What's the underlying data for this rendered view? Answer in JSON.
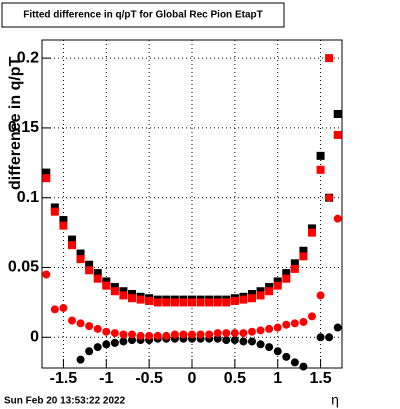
{
  "chart_data": {
    "type": "scatter",
    "title": "Fitted difference in q/pT for Global Rec Pion EtapT",
    "y_label": "difference in q/pT",
    "x_label": "η",
    "timestamp": "Sun Feb 20 13:53:22 2022",
    "x": [
      -1.7,
      -1.6,
      -1.5,
      -1.4,
      -1.3,
      -1.2,
      -1.1,
      -1.0,
      -0.9,
      -0.8,
      -0.7,
      -0.6,
      -0.5,
      -0.4,
      -0.3,
      -0.2,
      -0.1,
      0.0,
      0.1,
      0.2,
      0.3,
      0.4,
      0.5,
      0.6,
      0.7,
      0.8,
      0.9,
      1.0,
      1.1,
      1.2,
      1.3,
      1.4,
      1.5,
      1.6,
      1.7
    ],
    "series": [
      {
        "color": "#000000",
        "marker": "square",
        "values": [
          0.118,
          0.093,
          0.084,
          0.07,
          0.06,
          0.052,
          0.046,
          0.04,
          0.036,
          0.033,
          0.031,
          0.029,
          0.028,
          0.027,
          0.027,
          0.027,
          0.027,
          0.027,
          0.027,
          0.027,
          0.027,
          0.027,
          0.028,
          0.029,
          0.031,
          0.033,
          0.036,
          0.04,
          0.046,
          0.053,
          0.062,
          0.078,
          0.13,
          0.1,
          0.16
        ]
      },
      {
        "color": "#ff0000",
        "marker": "square",
        "values": [
          0.114,
          0.09,
          0.08,
          0.066,
          0.056,
          0.048,
          0.042,
          0.037,
          0.033,
          0.03,
          0.028,
          0.027,
          0.026,
          0.025,
          0.025,
          0.025,
          0.025,
          0.025,
          0.025,
          0.025,
          0.025,
          0.025,
          0.026,
          0.027,
          0.028,
          0.03,
          0.033,
          0.037,
          0.042,
          0.049,
          0.058,
          0.075,
          0.12,
          0.2,
          0.145
        ]
      },
      {
        "color": "#000000",
        "marker": "circle",
        "values": [
          null,
          null,
          null,
          null,
          -0.016,
          -0.01,
          -0.007,
          -0.005,
          -0.004,
          -0.003,
          -0.002,
          -0.002,
          -0.002,
          -0.001,
          -0.001,
          -0.001,
          -0.001,
          -0.001,
          -0.001,
          -0.001,
          -0.001,
          -0.002,
          -0.002,
          -0.003,
          -0.003,
          -0.005,
          -0.007,
          -0.01,
          -0.014,
          -0.018,
          -0.021,
          null,
          0.0,
          0.0,
          0.007
        ]
      },
      {
        "color": "#ff0000",
        "marker": "circle",
        "values": [
          0.045,
          0.02,
          0.021,
          0.012,
          0.01,
          0.008,
          0.006,
          0.004,
          0.003,
          0.002,
          0.002,
          0.001,
          0.001,
          0.001,
          0.001,
          0.002,
          0.002,
          0.002,
          0.002,
          0.002,
          0.003,
          0.003,
          0.003,
          0.003,
          0.004,
          0.005,
          0.006,
          0.007,
          0.009,
          0.01,
          0.011,
          0.015,
          0.03,
          0.1,
          0.085
        ]
      }
    ],
    "xlim": [
      -1.75,
      1.75
    ],
    "ylim": [
      -0.022,
      0.213
    ],
    "xticks": [
      -1.5,
      -1,
      -0.5,
      0,
      0.5,
      1,
      1.5
    ],
    "yticks": [
      0,
      0.05,
      0.1,
      0.15,
      0.2
    ],
    "grid": true
  }
}
